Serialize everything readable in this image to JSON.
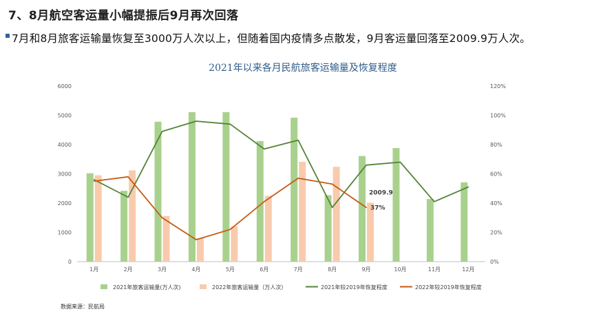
{
  "headline": "7、8月航空客运量小幅提振后9月再次回落",
  "subline": "7月和8月旅客运输量恢复至3000万人次以上，但随着国内疫情多点散发，9月客运量回落至2009.9万人次。",
  "source": "数据来源：民航局",
  "colors": {
    "bar2021": "#a9d18e",
    "bar2022": "#f8cbad",
    "line2021": "#548235",
    "line2022": "#c55a11",
    "title": "#2e5c8a"
  },
  "chart_data": {
    "type": "bar+line",
    "title": "2021年以来各月民航旅客运输量及恢复程度",
    "categories": [
      "1月",
      "2月",
      "3月",
      "4月",
      "5月",
      "6月",
      "7月",
      "8月",
      "9月",
      "10月",
      "11月",
      "12月"
    ],
    "y_left": {
      "min": 0,
      "max": 6000,
      "ticks": [
        "0",
        "1000",
        "2000",
        "3000",
        "4000",
        "5000",
        "6000"
      ]
    },
    "y_right": {
      "min": 0,
      "max": 120,
      "ticks": [
        "0%",
        "20%",
        "40%",
        "60%",
        "80%",
        "100%",
        "120%"
      ]
    },
    "series": [
      {
        "name": "2021年旅客运输量(万人次)",
        "type": "bar",
        "axis": "left",
        "values": [
          3020,
          2420,
          4780,
          5110,
          5110,
          4120,
          4920,
          2270,
          3610,
          3880,
          2140,
          2710
        ]
      },
      {
        "name": "2022年旅客运输量（万人次）",
        "type": "bar",
        "axis": "left",
        "values": [
          2950,
          3120,
          1560,
          800,
          1210,
          2250,
          3410,
          3240,
          2009.9,
          null,
          null,
          null
        ]
      },
      {
        "name": "2021年较2019年恢复程度",
        "type": "line",
        "axis": "right",
        "values": [
          56,
          44,
          89,
          96,
          94,
          77,
          83,
          37,
          66,
          68,
          41,
          51
        ]
      },
      {
        "name": "2022年较2019年恢复程度",
        "type": "line",
        "axis": "right",
        "values": [
          55,
          58,
          30,
          15,
          22,
          41,
          57,
          53,
          37,
          null,
          null,
          null
        ]
      }
    ],
    "annotations": [
      {
        "text": "2009.9",
        "category": "9月",
        "value": 2009.9
      },
      {
        "text": "37%",
        "category": "9月",
        "value": 37
      }
    ],
    "legend_position": "bottom",
    "grid": false
  }
}
